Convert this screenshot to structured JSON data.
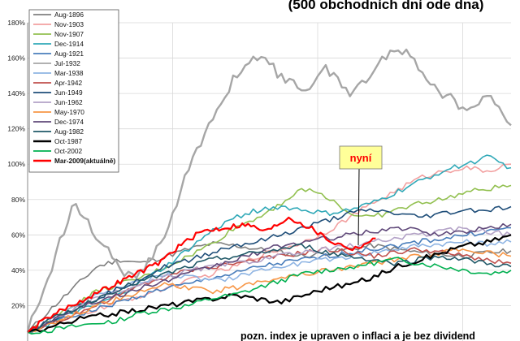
{
  "chart_data": {
    "type": "line",
    "title": "(500 obchodních dní ode dna)",
    "note": "pozn. index je upraven o inflaci a je bez dividend",
    "callout": "nyní",
    "ylim": [
      0,
      180
    ],
    "yticks": [
      "20%",
      "40%",
      "60%",
      "80%",
      "100%",
      "120%",
      "140%",
      "160%",
      "180%"
    ],
    "xlim": [
      0,
      500
    ],
    "legend_position": "top-left",
    "series": [
      {
        "name": "Aug-1896",
        "color": "#7f7f7f",
        "values": [
          5,
          18,
          30,
          42,
          46,
          44,
          48,
          52,
          55,
          54,
          52,
          50,
          48,
          50,
          52,
          54,
          52,
          50,
          49,
          48,
          50,
          51
        ]
      },
      {
        "name": "Nov-1903",
        "color": "#f2a0a0",
        "values": [
          5,
          10,
          14,
          18,
          22,
          26,
          30,
          34,
          38,
          42,
          48,
          52,
          56,
          62,
          70,
          78,
          85,
          92,
          96,
          98,
          96,
          100
        ]
      },
      {
        "name": "Nov-1907",
        "color": "#92c050",
        "values": [
          5,
          12,
          20,
          28,
          32,
          36,
          42,
          48,
          55,
          64,
          70,
          78,
          86,
          82,
          72,
          70,
          74,
          78,
          80,
          84,
          86,
          88
        ]
      },
      {
        "name": "Dec-1914",
        "color": "#31a9b8",
        "values": [
          5,
          10,
          16,
          20,
          26,
          34,
          42,
          52,
          62,
          70,
          74,
          76,
          74,
          72,
          74,
          78,
          84,
          90,
          96,
          100,
          104,
          98
        ]
      },
      {
        "name": "Aug-1921",
        "color": "#4a7ebb",
        "values": [
          5,
          10,
          14,
          18,
          22,
          26,
          30,
          32,
          36,
          38,
          42,
          44,
          46,
          48,
          50,
          52,
          54,
          56,
          58,
          60,
          62,
          64
        ]
      },
      {
        "name": "Jul-1932",
        "color": "#a6a6a6",
        "values": [
          5,
          40,
          80,
          60,
          40,
          38,
          62,
          98,
          124,
          150,
          162,
          150,
          142,
          154,
          140,
          152,
          168,
          155,
          140,
          132,
          140,
          122
        ]
      },
      {
        "name": "Mar-1938",
        "color": "#8eb4e3",
        "values": [
          5,
          12,
          20,
          26,
          30,
          34,
          38,
          36,
          34,
          36,
          40,
          42,
          44,
          46,
          48,
          50,
          52,
          54,
          55,
          56,
          55,
          56
        ]
      },
      {
        "name": "Apr-1942",
        "color": "#c0504d",
        "values": [
          5,
          10,
          15,
          20,
          26,
          32,
          36,
          40,
          42,
          44,
          46,
          48,
          50,
          52,
          50,
          48,
          50,
          52,
          50,
          48,
          46,
          44
        ]
      },
      {
        "name": "Jun-1949",
        "color": "#1f4e79",
        "values": [
          5,
          12,
          18,
          24,
          30,
          36,
          42,
          46,
          50,
          54,
          56,
          60,
          64,
          68,
          72,
          74,
          72,
          70,
          72,
          74,
          74,
          76
        ]
      },
      {
        "name": "Jun-1962",
        "color": "#b3a2c7",
        "values": [
          5,
          12,
          18,
          24,
          28,
          32,
          36,
          40,
          42,
          44,
          46,
          48,
          50,
          52,
          54,
          56,
          58,
          60,
          62,
          64,
          62,
          60
        ]
      },
      {
        "name": "May-1970",
        "color": "#f79646",
        "values": [
          5,
          10,
          15,
          20,
          24,
          28,
          32,
          30,
          28,
          30,
          34,
          36,
          38,
          40,
          42,
          44,
          46,
          48,
          50,
          52,
          50,
          48
        ]
      },
      {
        "name": "Dec-1974",
        "color": "#60497a",
        "values": [
          5,
          12,
          18,
          22,
          26,
          30,
          34,
          38,
          42,
          46,
          50,
          54,
          56,
          58,
          60,
          62,
          64,
          62,
          60,
          62,
          64,
          66
        ]
      },
      {
        "name": "Aug-1982",
        "color": "#215968",
        "values": [
          5,
          12,
          18,
          24,
          30,
          34,
          38,
          42,
          46,
          48,
          50,
          52,
          54,
          50,
          48,
          46,
          44,
          46,
          48,
          46,
          44,
          42
        ]
      },
      {
        "name": "Oct-1987",
        "color": "#000000",
        "values": [
          5,
          8,
          12,
          14,
          16,
          18,
          20,
          22,
          24,
          26,
          24,
          22,
          26,
          30,
          32,
          36,
          42,
          46,
          50,
          54,
          56,
          60
        ]
      },
      {
        "name": "Oct-2002",
        "color": "#00b050",
        "values": [
          5,
          6,
          8,
          10,
          12,
          16,
          18,
          20,
          24,
          26,
          30,
          34,
          38,
          40,
          42,
          44,
          46,
          44,
          42,
          40,
          38,
          40
        ]
      },
      {
        "name": "Mar-2009(aktuálně)",
        "color": "#ff0000",
        "values": [
          5,
          14,
          20,
          26,
          32,
          38,
          44,
          54,
          62,
          64,
          66,
          62,
          70,
          64,
          56,
          52,
          58
        ]
      }
    ]
  }
}
